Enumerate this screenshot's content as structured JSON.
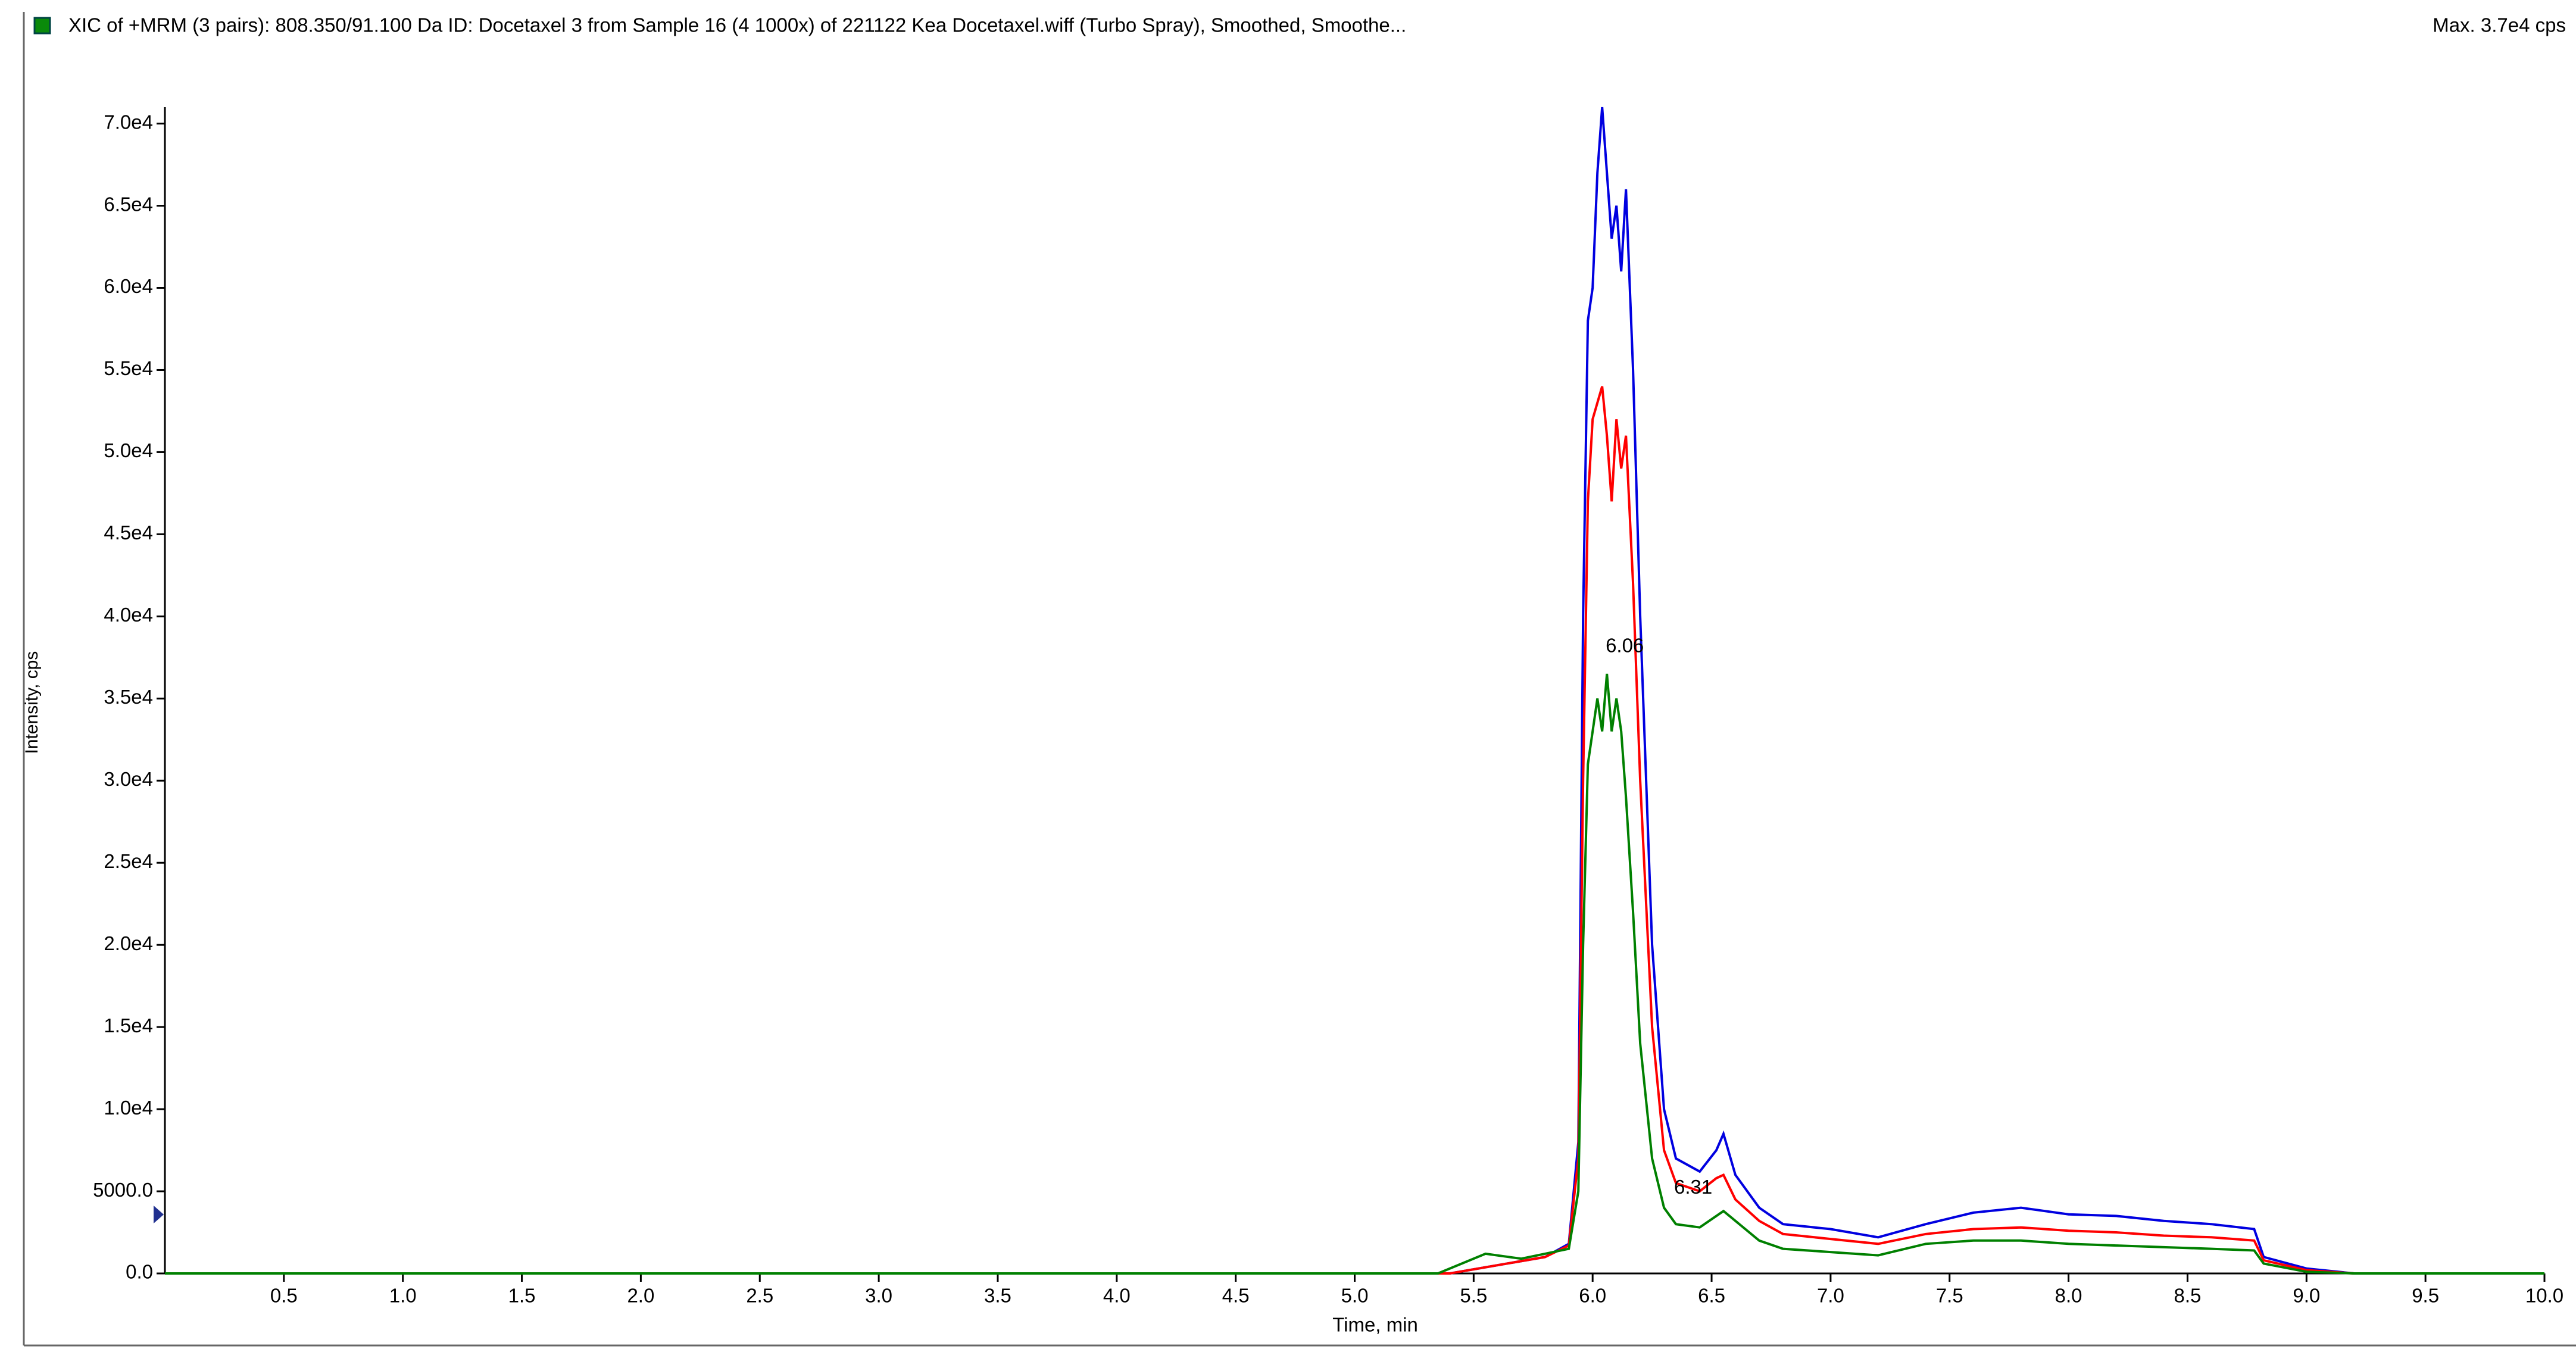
{
  "chart_data": {
    "type": "line",
    "title": "XIC of +MRM (3 pairs): 808.350/91.100 Da ID: Docetaxel 3 from Sample 16 (4 1000x) of 221122 Kea Docetaxel.wiff (Turbo Spray), Smoothed, Smoothe...",
    "subtitle": "Max. 3.7e4 cps",
    "x_label": "Time, min",
    "y_label": "Intensity, cps",
    "annotations": [
      "6.06",
      "6.31"
    ],
    "xlim": [
      0,
      10
    ],
    "ylim": [
      0,
      71000
    ],
    "xticks": [
      {
        "value": 0.5,
        "label": "0.5"
      },
      {
        "value": 1,
        "label": "1.0"
      },
      {
        "value": 1.5,
        "label": "1.5"
      },
      {
        "value": 2,
        "label": "2.0"
      },
      {
        "value": 2.5,
        "label": "2.5"
      },
      {
        "value": 3,
        "label": "3.0"
      },
      {
        "value": 3.5,
        "label": "3.5"
      },
      {
        "value": 4,
        "label": "4.0"
      },
      {
        "value": 4.5,
        "label": "4.5"
      },
      {
        "value": 5,
        "label": "5.0"
      },
      {
        "value": 5.5,
        "label": "5.5"
      },
      {
        "value": 6,
        "label": "6.0"
      },
      {
        "value": 6.5,
        "label": "6.5"
      },
      {
        "value": 7,
        "label": "7.0"
      },
      {
        "value": 7.5,
        "label": "7.5"
      },
      {
        "value": 8,
        "label": "8.0"
      },
      {
        "value": 8.5,
        "label": "8.5"
      },
      {
        "value": 9,
        "label": "9.0"
      },
      {
        "value": 9.5,
        "label": "9.5"
      },
      {
        "value": 10,
        "label": "10.0"
      }
    ],
    "yticks": [
      {
        "value": 0,
        "label": "0.0"
      },
      {
        "value": 5000,
        "label": "5000.0"
      },
      {
        "value": 10000,
        "label": "1.0e4"
      },
      {
        "value": 15000,
        "label": "1.5e4"
      },
      {
        "value": 20000,
        "label": "2.0e4"
      },
      {
        "value": 25000,
        "label": "2.5e4"
      },
      {
        "value": 30000,
        "label": "3.0e4"
      },
      {
        "value": 35000,
        "label": "3.5e4"
      },
      {
        "value": 40000,
        "label": "4.0e4"
      },
      {
        "value": 45000,
        "label": "4.5e4"
      },
      {
        "value": 50000,
        "label": "5.0e4"
      },
      {
        "value": 55000,
        "label": "5.5e4"
      },
      {
        "value": 60000,
        "label": "6.0e4"
      },
      {
        "value": 65000,
        "label": "6.5e4"
      },
      {
        "value": 70000,
        "label": "7.0e4"
      }
    ],
    "series": [
      {
        "color": "#0000e0",
        "x": [
          0,
          5.4,
          5.6,
          5.8,
          5.9,
          5.94,
          5.96,
          5.98,
          6.0,
          6.02,
          6.04,
          6.06,
          6.08,
          6.1,
          6.12,
          6.14,
          6.17,
          6.2,
          6.25,
          6.3,
          6.35,
          6.45,
          6.52,
          6.55,
          6.6,
          6.7,
          6.8,
          7.0,
          7.2,
          7.4,
          7.6,
          7.8,
          8.0,
          8.2,
          8.4,
          8.6,
          8.78,
          8.82,
          9.0,
          9.2,
          10
        ],
        "values": [
          0,
          0,
          500,
          1000,
          1800,
          8000,
          40000,
          58000,
          60000,
          67000,
          71000,
          67000,
          63000,
          65000,
          61000,
          66000,
          55000,
          40000,
          20000,
          10000,
          7000,
          6200,
          7500,
          8500,
          6000,
          4000,
          3000,
          2700,
          2200,
          3000,
          3700,
          4000,
          3600,
          3500,
          3200,
          3000,
          2700,
          1000,
          300,
          0,
          0
        ]
      },
      {
        "color": "#ff0000",
        "x": [
          0,
          5.4,
          5.6,
          5.8,
          5.9,
          5.94,
          5.96,
          5.98,
          6.0,
          6.02,
          6.04,
          6.06,
          6.08,
          6.1,
          6.12,
          6.14,
          6.17,
          6.2,
          6.25,
          6.3,
          6.35,
          6.45,
          6.52,
          6.55,
          6.6,
          6.7,
          6.8,
          7.0,
          7.2,
          7.4,
          7.6,
          7.8,
          8.0,
          8.2,
          8.4,
          8.6,
          8.78,
          8.82,
          9.0,
          9.2,
          10
        ],
        "values": [
          0,
          0,
          500,
          1000,
          1700,
          7000,
          30000,
          47000,
          52000,
          53000,
          54000,
          51000,
          47000,
          52000,
          49000,
          51000,
          42000,
          30000,
          15000,
          7500,
          5500,
          5000,
          5800,
          6000,
          4500,
          3200,
          2400,
          2100,
          1800,
          2400,
          2700,
          2800,
          2600,
          2500,
          2300,
          2200,
          2000,
          800,
          200,
          0,
          0
        ]
      },
      {
        "color": "#008000",
        "x": [
          0,
          5.35,
          5.55,
          5.7,
          5.8,
          5.9,
          5.94,
          5.96,
          5.98,
          6.0,
          6.02,
          6.04,
          6.06,
          6.08,
          6.1,
          6.12,
          6.14,
          6.17,
          6.2,
          6.25,
          6.3,
          6.35,
          6.45,
          6.55,
          6.6,
          6.7,
          6.8,
          7.0,
          7.2,
          7.4,
          7.6,
          7.8,
          8.0,
          8.2,
          8.4,
          8.6,
          8.78,
          8.82,
          9.0,
          9.2,
          10
        ],
        "values": [
          0,
          0,
          1200,
          900,
          1200,
          1500,
          5000,
          20000,
          31000,
          33000,
          35000,
          33000,
          36500,
          33000,
          35000,
          33000,
          29000,
          22000,
          14000,
          7000,
          4000,
          3000,
          2800,
          3800,
          3200,
          2000,
          1500,
          1300,
          1100,
          1800,
          2000,
          2000,
          1800,
          1700,
          1600,
          1500,
          1400,
          600,
          100,
          0,
          0
        ]
      }
    ]
  }
}
